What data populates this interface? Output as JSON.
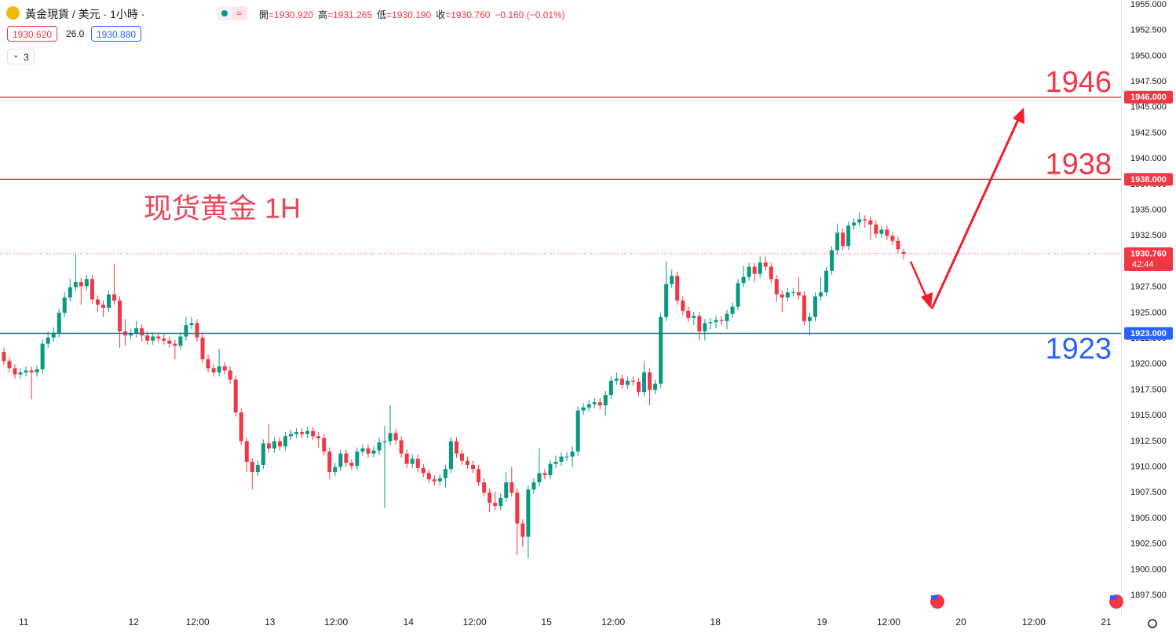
{
  "header": {
    "symbol": "黃金現貨 / 美元 · 1小時 ·",
    "ohlc": [
      {
        "label": "開",
        "value": "=1930.920"
      },
      {
        "label": "高",
        "value": "=1931.265"
      },
      {
        "label": "低",
        "value": "=1930.190"
      },
      {
        "label": "收",
        "value": "=1930.760"
      }
    ],
    "change": "−0.160 (−0.01%)",
    "bid": "1930.620",
    "spread": "26.0",
    "ask": "1930.880",
    "indicators": "3"
  },
  "chart_data": {
    "type": "candlestick",
    "title": "现货黄金 1H",
    "up_color": "#089981",
    "down_color": "#f23645",
    "open": [
      1921.2,
      1920.3,
      1919.6,
      1919,
      1919.2,
      1919.4,
      1919.2,
      1919.5,
      1922,
      1922.6,
      1923,
      1925,
      1926.5,
      1927.5,
      1928,
      1927.6,
      1928.3,
      1926.3,
      1925.8,
      1925.5,
      1926.8,
      1926.2,
      1923.2,
      1922.8,
      1923,
      1923.5,
      1922.8,
      1922.3,
      1922.7,
      1922.5,
      1922.3,
      1922,
      1921.8,
      1922.7,
      1923.8,
      1924,
      1922.6,
      1920.5,
      1919.6,
      1919.2,
      1919.8,
      1919.4,
      1918.5,
      1915.3,
      1912.5,
      1910.5,
      1909.5,
      1910.2,
      1912.3,
      1911.8,
      1912.5,
      1912,
      1913,
      1913.2,
      1913.4,
      1913.2,
      1913.5,
      1913,
      1912.8,
      1911.5,
      1909.5,
      1910,
      1911.3,
      1910.4,
      1910.1,
      1911.5,
      1911.8,
      1911.3,
      1911.6,
      1912.4,
      1912.5,
      1913.3,
      1912.6,
      1911.3,
      1910.3,
      1910.8,
      1909.9,
      1909.4,
      1908.8,
      1908.6,
      1908.9,
      1909.8,
      1912.5,
      1911.3,
      1910.6,
      1910.2,
      1909.8,
      1908.5,
      1907.5,
      1906.5,
      1906.2,
      1907,
      1908.5,
      1907.5,
      1904.5,
      1903.2,
      1907.8,
      1908.5,
      1909.4,
      1909.2,
      1910.3,
      1910.5,
      1911,
      1911,
      1911.5,
      1915.5,
      1915.8,
      1916.1,
      1916.3,
      1916,
      1917,
      1918.4,
      1918.6,
      1918,
      1918.4,
      1918.3,
      1917.3,
      1919.2,
      1917.5,
      1918.1,
      1924.6,
      1927.8,
      1928.6,
      1926.2,
      1925.2,
      1924.5,
      1924.7,
      1923.2,
      1924,
      1924.1,
      1924.3,
      1924.2,
      1924.9,
      1925.6,
      1927.9,
      1928.5,
      1929.5,
      1928.8,
      1929.9,
      1929.5,
      1928.3,
      1926.8,
      1926.5,
      1927,
      1927,
      1926.7,
      1924.2,
      1924.6,
      1926.6,
      1927,
      1929.1,
      1931.1,
      1932.8,
      1931.5,
      1933.5,
      1933.8,
      1934.1,
      1934,
      1933.6,
      1932.7,
      1933.1,
      1932.5,
      1932,
      1930.92
    ],
    "high": [
      1921.6,
      1920.7,
      1920,
      1919.6,
      1919.8,
      1919.8,
      1919.9,
      1922.4,
      1923.2,
      1923.6,
      1925.4,
      1927,
      1928.3,
      1930.7,
      1928.4,
      1928.7,
      1928.7,
      1926.7,
      1926.2,
      1927.2,
      1929.8,
      1926.6,
      1924.4,
      1923.4,
      1924.2,
      1923.9,
      1923.2,
      1923.1,
      1923.1,
      1922.9,
      1922.7,
      1922.4,
      1923.1,
      1924.6,
      1924.6,
      1924.4,
      1923,
      1920.9,
      1920,
      1921.5,
      1920.2,
      1919.8,
      1918.9,
      1915.7,
      1912.9,
      1910.9,
      1910.6,
      1912.7,
      1914.2,
      1912.9,
      1912.9,
      1913.4,
      1913.6,
      1913.8,
      1913.8,
      1913.9,
      1913.9,
      1913.4,
      1913.2,
      1911.9,
      1910.4,
      1911.7,
      1911.7,
      1910.8,
      1911.9,
      1912.2,
      1912.2,
      1912,
      1912.8,
      1914,
      1916,
      1913.7,
      1913,
      1911.7,
      1911.2,
      1911.2,
      1910.3,
      1909.8,
      1909.2,
      1909.3,
      1910.2,
      1912.9,
      1912.9,
      1911.7,
      1911,
      1910.6,
      1910.2,
      1908.9,
      1907.9,
      1907.6,
      1907.4,
      1909.5,
      1910,
      1907.9,
      1904.9,
      1908.2,
      1908.9,
      1911.8,
      1909.8,
      1910.7,
      1911.1,
      1911.4,
      1911.4,
      1912,
      1915.9,
      1916.2,
      1916.5,
      1916.7,
      1916.7,
      1917.4,
      1918.8,
      1919.2,
      1919,
      1918.8,
      1918.8,
      1918.7,
      1920.3,
      1919.6,
      1918.5,
      1925,
      1930,
      1929.2,
      1929,
      1926.6,
      1925.6,
      1925.1,
      1925.1,
      1924.4,
      1924.5,
      1924.7,
      1924.7,
      1925.3,
      1926,
      1928.3,
      1929.6,
      1929.9,
      1929.9,
      1930.5,
      1930.5,
      1929.9,
      1928.7,
      1927.2,
      1927.4,
      1927.4,
      1928.5,
      1927.1,
      1925,
      1927,
      1928.5,
      1929.5,
      1931.5,
      1933.7,
      1933.2,
      1933.9,
      1934.2,
      1934.8,
      1934.5,
      1934.4,
      1934,
      1933.5,
      1933.5,
      1932.9,
      1932.4,
      1931.265
    ],
    "low": [
      1919.9,
      1919.2,
      1918.6,
      1918.6,
      1918.8,
      1916.6,
      1918.8,
      1919.1,
      1921.6,
      1922.2,
      1922.6,
      1924.6,
      1926.1,
      1927.1,
      1925.8,
      1927.2,
      1925.9,
      1925.1,
      1924.6,
      1925.1,
      1925.8,
      1921.6,
      1921.8,
      1922.4,
      1922.6,
      1922.2,
      1921.9,
      1921.9,
      1922.1,
      1921.9,
      1921.6,
      1920.5,
      1921.4,
      1922.3,
      1923.4,
      1922.2,
      1920.1,
      1919.2,
      1918.8,
      1918.8,
      1919,
      1918.1,
      1914.9,
      1912.1,
      1909.5,
      1907.8,
      1909.1,
      1909.8,
      1911.4,
      1911.4,
      1911.6,
      1911.6,
      1912.6,
      1912.8,
      1912.8,
      1912.8,
      1912.6,
      1911.9,
      1911.1,
      1908.8,
      1909.1,
      1909.6,
      1910,
      1909.7,
      1909.7,
      1911.1,
      1910.9,
      1910.9,
      1911.2,
      1906,
      1912.1,
      1912.2,
      1910.9,
      1909.9,
      1909.9,
      1909.5,
      1909,
      1908.4,
      1908.2,
      1908.2,
      1908,
      1909.4,
      1910.9,
      1910.2,
      1909.8,
      1909.4,
      1908.1,
      1907.1,
      1905.6,
      1905.8,
      1905.8,
      1906.6,
      1907.1,
      1901.4,
      1902.2,
      1901.1,
      1907.4,
      1908.1,
      1908.8,
      1908.8,
      1909.9,
      1910.1,
      1910.6,
      1910,
      1911.1,
      1915.1,
      1915.4,
      1915.7,
      1915.6,
      1915,
      1916.6,
      1918,
      1917.6,
      1917.6,
      1917.9,
      1916.9,
      1916.9,
      1916,
      1917.1,
      1917.7,
      1924.2,
      1927.4,
      1925.8,
      1924.8,
      1924.1,
      1923.8,
      1922.3,
      1922.3,
      1923.4,
      1923.5,
      1923.8,
      1923.4,
      1924.5,
      1925.2,
      1927.5,
      1928.1,
      1928,
      1928.4,
      1929.1,
      1927.9,
      1926.1,
      1925.1,
      1926.1,
      1926.6,
      1926.3,
      1923.8,
      1922.8,
      1924.2,
      1926.2,
      1926.6,
      1928.7,
      1930.7,
      1931.1,
      1931.1,
      1933.1,
      1933.4,
      1933.3,
      1932.2,
      1932.3,
      1932.3,
      1932.1,
      1931.6,
      1930.8,
      1930.19
    ],
    "close": [
      1920.3,
      1919.6,
      1919,
      1919.2,
      1919.4,
      1919.2,
      1919.5,
      1922,
      1922.6,
      1923,
      1925,
      1926.5,
      1927.5,
      1928,
      1927.6,
      1928.3,
      1926.3,
      1925.8,
      1925.5,
      1926.8,
      1926.2,
      1923.2,
      1922.8,
      1923,
      1923.5,
      1922.8,
      1922.3,
      1922.7,
      1922.5,
      1922.3,
      1922,
      1921.8,
      1922.7,
      1923.8,
      1924,
      1922.6,
      1920.5,
      1919.6,
      1919.2,
      1919.8,
      1919.4,
      1918.5,
      1915.3,
      1912.5,
      1910.5,
      1909.5,
      1910.2,
      1912.3,
      1911.8,
      1912.5,
      1912,
      1913,
      1913.2,
      1913.4,
      1913.2,
      1913.5,
      1913,
      1912.8,
      1911.5,
      1909.5,
      1910,
      1911.3,
      1910.4,
      1910.1,
      1911.5,
      1911.8,
      1911.3,
      1911.6,
      1912.4,
      1912.5,
      1913.3,
      1912.6,
      1911.3,
      1910.3,
      1910.8,
      1909.9,
      1909.4,
      1908.8,
      1908.6,
      1908.9,
      1909.8,
      1912.5,
      1911.3,
      1910.6,
      1910.2,
      1909.8,
      1908.5,
      1907.5,
      1906.5,
      1906.2,
      1907,
      1908.5,
      1907.5,
      1904.5,
      1903.2,
      1907.8,
      1908.5,
      1909.4,
      1909.2,
      1910.3,
      1910.5,
      1911,
      1911,
      1911.5,
      1915.5,
      1915.8,
      1916.1,
      1916.3,
      1916,
      1917,
      1918.4,
      1918.6,
      1918,
      1918.4,
      1918.3,
      1917.3,
      1919.2,
      1917.5,
      1918.1,
      1924.6,
      1927.8,
      1928.6,
      1926.2,
      1925.2,
      1924.5,
      1924.7,
      1923.2,
      1924,
      1924.1,
      1924.3,
      1924.2,
      1924.9,
      1925.6,
      1927.9,
      1928.5,
      1929.5,
      1928.8,
      1929.9,
      1929.5,
      1928.3,
      1926.8,
      1926.5,
      1927,
      1927,
      1926.7,
      1924.2,
      1924.6,
      1926.6,
      1927,
      1929.1,
      1931.1,
      1932.8,
      1931.5,
      1933.5,
      1933.8,
      1934.1,
      1934,
      1933.6,
      1932.7,
      1933.1,
      1932.5,
      1932,
      1931.2,
      1930.76
    ],
    "xlim": [
      -0.7,
      202.4
    ],
    "xticks": [
      {
        "value": 3.6,
        "label": "11"
      },
      {
        "value": 23.5,
        "label": "12"
      },
      {
        "value": 35.1,
        "label": "12:00"
      },
      {
        "value": 48.2,
        "label": "13"
      },
      {
        "value": 60.2,
        "label": "12:00"
      },
      {
        "value": 73.3,
        "label": "14"
      },
      {
        "value": 85.3,
        "label": "12:00"
      },
      {
        "value": 98.3,
        "label": "15"
      },
      {
        "value": 110.4,
        "label": "12:00"
      },
      {
        "value": 128.9,
        "label": "18"
      },
      {
        "value": 148.2,
        "label": "19"
      },
      {
        "value": 160.3,
        "label": "12:00"
      },
      {
        "value": 173.4,
        "label": "20"
      },
      {
        "value": 186.6,
        "label": "12:00"
      },
      {
        "value": 199.7,
        "label": "21"
      }
    ],
    "ylim": [
      1895.67,
      1955.46
    ],
    "yticks": [
      {
        "value": 1897.5,
        "label": "1897.500"
      },
      {
        "value": 1900,
        "label": "1900.000"
      },
      {
        "value": 1902.5,
        "label": "1902.500"
      },
      {
        "value": 1905,
        "label": "1905.000"
      },
      {
        "value": 1907.5,
        "label": "1907.500"
      },
      {
        "value": 1910,
        "label": "1910.000"
      },
      {
        "value": 1912.5,
        "label": "1912.500"
      },
      {
        "value": 1915,
        "label": "1915.000"
      },
      {
        "value": 1917.5,
        "label": "1917.500"
      },
      {
        "value": 1920,
        "label": "1920.000"
      },
      {
        "value": 1922.5,
        "label": "1922.500"
      },
      {
        "value": 1925,
        "label": "1925.000"
      },
      {
        "value": 1927.5,
        "label": "1927.500"
      },
      {
        "value": 1930,
        "label": "1930.000"
      },
      {
        "value": 1932.5,
        "label": "1932.500"
      },
      {
        "value": 1935,
        "label": "1935.000"
      },
      {
        "value": 1937.5,
        "label": "1937.500"
      },
      {
        "value": 1940,
        "label": "1940.000"
      },
      {
        "value": 1942.5,
        "label": "1942.500"
      },
      {
        "value": 1945,
        "label": "1945.000"
      },
      {
        "value": 1947.5,
        "label": "1947.500"
      },
      {
        "value": 1950,
        "label": "1950.000"
      },
      {
        "value": 1952.5,
        "label": "1952.500"
      },
      {
        "value": 1955,
        "label": "1955.000"
      }
    ],
    "grid": false,
    "hlines": [
      {
        "value": 1946,
        "label": "1946",
        "tag": "1946.000",
        "color": "#f23645",
        "label_position": "above"
      },
      {
        "value": 1938,
        "label": "1938",
        "tag": "1938.000",
        "color": "#f23645",
        "label_position": "above"
      },
      {
        "value": 1923,
        "label": "1923",
        "tag": "1923.000",
        "color": "#2962ff",
        "label_position": "below"
      }
    ],
    "last_price": {
      "value": 1930.76,
      "label": "1930.760",
      "countdown": "42:44",
      "color": "#f23645"
    }
  }
}
